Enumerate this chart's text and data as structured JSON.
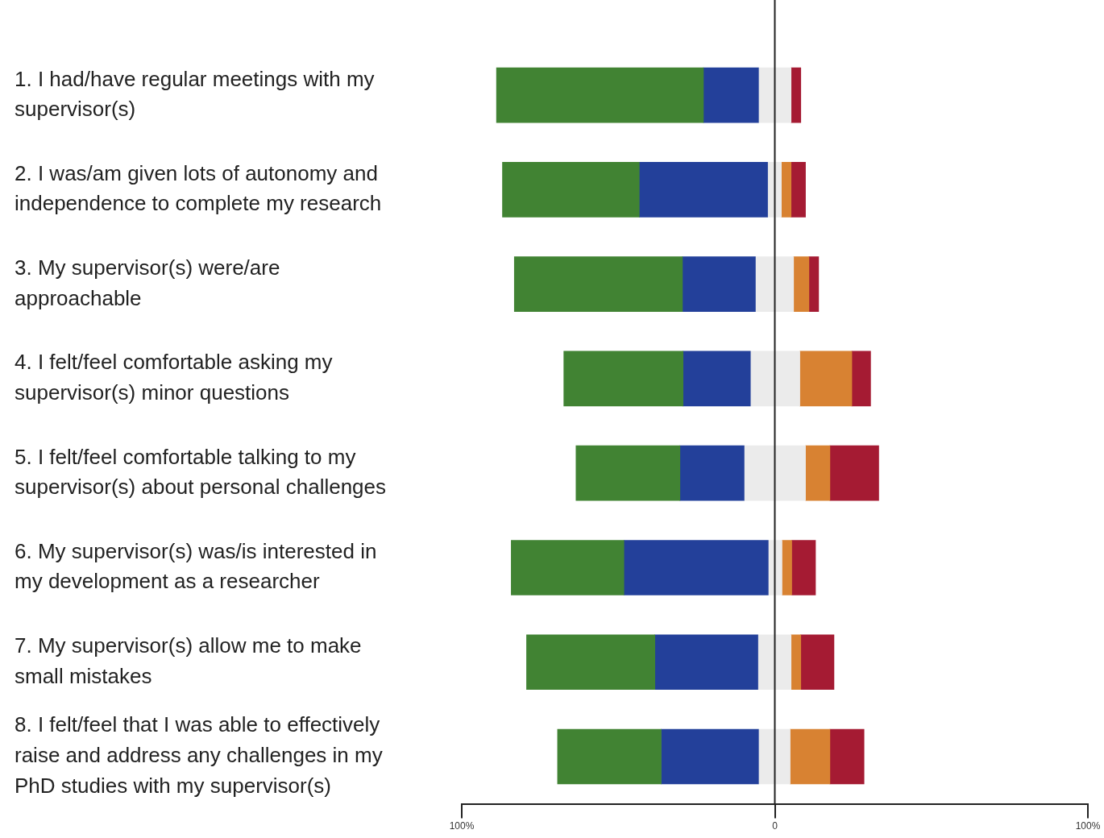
{
  "chart_data": {
    "type": "bar",
    "orientation": "horizontal",
    "categories": [
      "1. I had/have regular meetings with my supervisor(s)",
      "2. I was/am given lots of autonomy and independence to complete my research",
      "3. My supervisor(s) were/are approachable",
      "4. I felt/feel comfortable asking my supervisor(s) minor questions",
      "5. I felt/feel comfortable talking to my supervisor(s) about personal challenges",
      "6. My supervisor(s) was/is interested in my development as a researcher",
      "7. My supervisor(s) allow me to make small mistakes",
      "8. I felt/feel that I was able to effectively raise and address any challenges in my PhD studies with my supervisor(s)"
    ],
    "series": [
      {
        "color": "#418333",
        "base": [
          -88.9,
          -87.0,
          -83.2,
          -67.4,
          -63.5,
          -84.2,
          -79.3,
          -69.4
        ],
        "values": [
          66.1,
          43.7,
          53.7,
          38.1,
          33.2,
          36.0,
          41.0,
          33.1
        ]
      },
      {
        "color": "#23409a",
        "base": [
          -22.8,
          -43.3,
          -29.5,
          -29.3,
          -30.3,
          -48.2,
          -38.3,
          -36.3
        ],
        "values": [
          17.6,
          41.0,
          23.3,
          21.5,
          20.5,
          46.1,
          32.9,
          31.1
        ]
      },
      {
        "color": "#ebebeb",
        "base": [
          -5.2,
          -2.3,
          -6.2,
          -7.8,
          -9.8,
          -2.1,
          -5.4,
          -5.2
        ],
        "values": [
          10.4,
          4.4,
          12.2,
          15.8,
          19.6,
          4.4,
          10.6,
          10.1
        ]
      },
      {
        "color": "#d88232",
        "base": [
          null,
          2.1,
          6.0,
          8.0,
          9.8,
          2.3,
          5.2,
          4.9
        ],
        "values": [
          null,
          3.1,
          4.9,
          16.6,
          7.8,
          3.1,
          3.1,
          12.7
        ]
      },
      {
        "color": "#a51b33",
        "base": [
          5.2,
          5.2,
          10.9,
          24.6,
          17.6,
          5.4,
          8.3,
          17.6
        ],
        "values": [
          3.1,
          4.6,
          3.1,
          6.0,
          15.6,
          7.6,
          10.6,
          10.9
        ]
      }
    ],
    "xlim": [
      -100,
      100
    ],
    "xticks": [
      {
        "value": -100,
        "label": "100%"
      },
      0,
      {
        "value": 100,
        "label": "100%"
      }
    ],
    "ref_lines": [
      {
        "axis": "x",
        "value": 0,
        "color": "#222222"
      }
    ],
    "grid": false,
    "legend": false
  }
}
